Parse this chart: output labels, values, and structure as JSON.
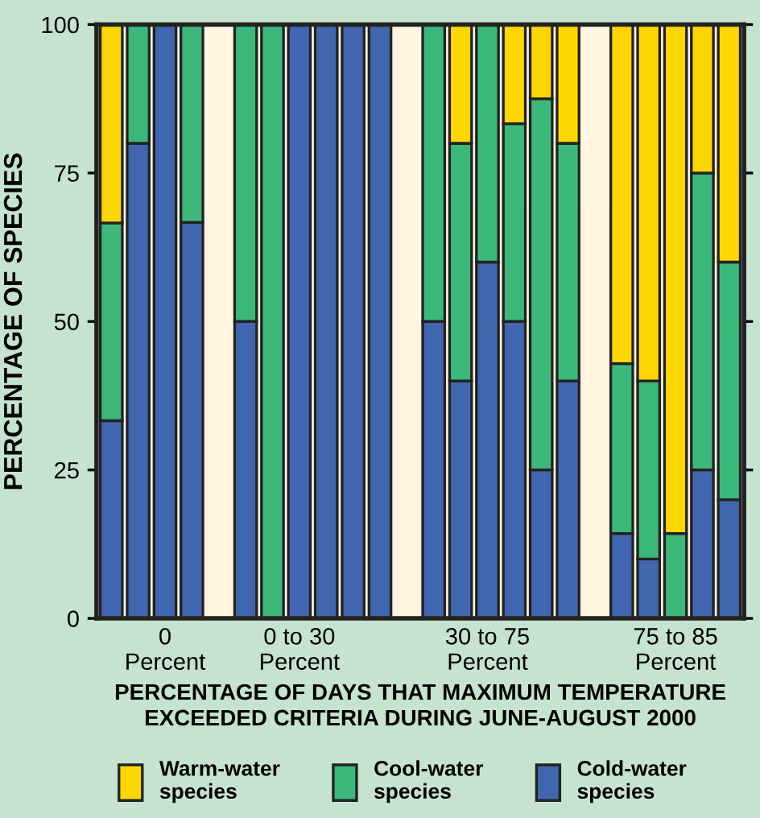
{
  "chart_data": {
    "type": "bar",
    "stacked": true,
    "ylabel": "PERCENTAGE OF SPECIES",
    "xlabel": "PERCENTAGE OF DAYS THAT MAXIMUM TEMPERATURE\nEXCEEDED CRITERIA DURING JUNE-AUGUST 2000",
    "categories": [
      null,
      null,
      "0\nPercent",
      null,
      null,
      null,
      null,
      "0 to 30\nPercent",
      null,
      null,
      null,
      null,
      null,
      null,
      "30 to 75\nPercent",
      null,
      null,
      null,
      null,
      null,
      null,
      "75 to 85\nPercent",
      null,
      null
    ],
    "ylim": [
      0,
      100
    ],
    "yticks": [
      0,
      25,
      50,
      75,
      100
    ],
    "grid": false,
    "legend": "bottom",
    "series": [
      {
        "name": "Cold-water\nspecies",
        "color": "#4166b0",
        "values": [
          33.3,
          80,
          100,
          66.7,
          null,
          50,
          0,
          100,
          100,
          100,
          100,
          null,
          50,
          40,
          60,
          50,
          25,
          40,
          null,
          14.3,
          10,
          0,
          25,
          20
        ]
      },
      {
        "name": "Cool-water\nspecies",
        "color": "#3cb97a",
        "values": [
          33.3,
          20,
          0,
          33.3,
          null,
          50,
          100,
          0,
          0,
          0,
          0,
          null,
          50,
          40,
          40,
          33.3,
          62.5,
          40,
          null,
          28.6,
          30,
          14.3,
          50,
          40
        ]
      },
      {
        "name": "Warm-water\nspecies",
        "color": "#ffd700",
        "values": [
          33.4,
          0,
          0,
          0,
          null,
          0,
          0,
          0,
          0,
          0,
          0,
          null,
          0,
          20,
          0,
          16.7,
          12.5,
          20,
          null,
          57.1,
          60,
          85.7,
          25,
          40
        ]
      }
    ]
  }
}
